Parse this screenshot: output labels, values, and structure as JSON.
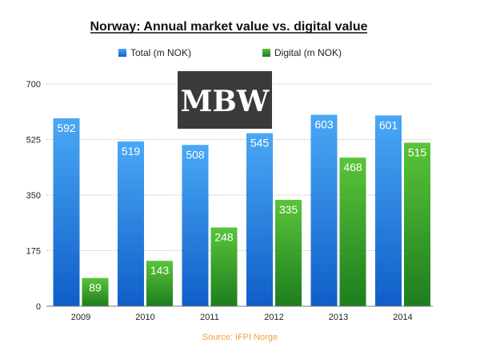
{
  "colors": {
    "total_light": "#4aa8f5",
    "total_dark": "#0f5ec8",
    "digital_light": "#59c43a",
    "digital_dark": "#1e7d1e",
    "grid": "#b9b9b9",
    "source": "#f0a040",
    "logo_bg": "#3a3a3a",
    "logo_accent": "#e8542a"
  },
  "logo": {
    "text": "MBW"
  },
  "source": "Source: IFPI Norge",
  "chart_data": {
    "type": "bar",
    "title": "Norway: Annual market value vs. digital value",
    "xlabel": "",
    "ylabel": "",
    "categories": [
      "2009",
      "2010",
      "2011",
      "2012",
      "2013",
      "2014"
    ],
    "series": [
      {
        "name": "Total (m NOK)",
        "values": [
          592,
          519,
          508,
          545,
          603,
          601
        ]
      },
      {
        "name": "Digital (m NOK)",
        "values": [
          89,
          143,
          248,
          335,
          468,
          515
        ]
      }
    ],
    "ylim": [
      0,
      700
    ],
    "yticks": [
      0,
      175,
      350,
      525,
      700
    ],
    "ytick_labels": [
      "0",
      "175",
      "350",
      "525",
      "700"
    ],
    "grid": true,
    "legend": "top"
  }
}
